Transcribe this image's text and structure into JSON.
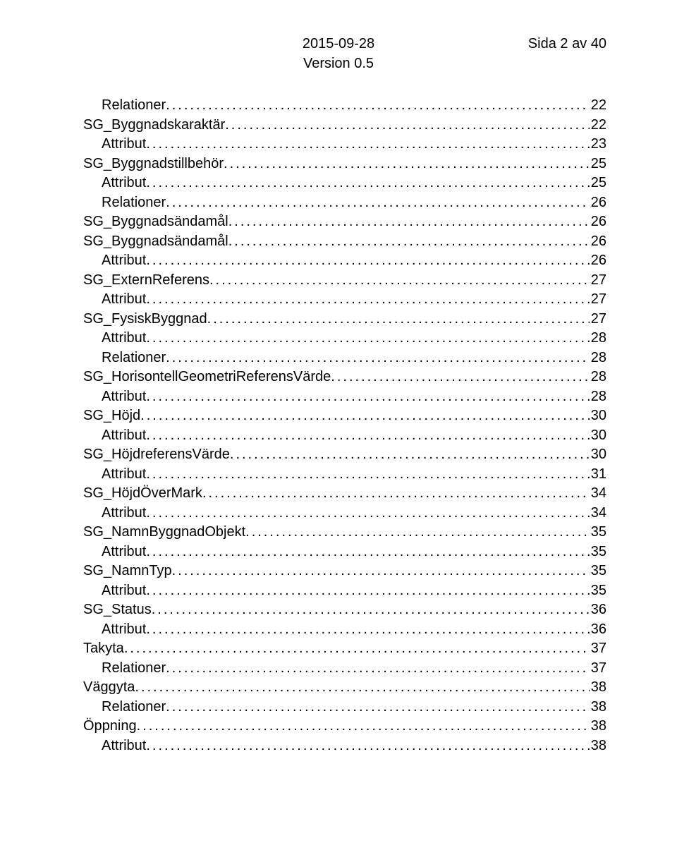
{
  "header": {
    "date": "2015-09-28",
    "version": "Version 0.5",
    "page_label": "Sida 2 av 40"
  },
  "toc": {
    "items": [
      {
        "label": "Relationer",
        "page": "22",
        "level": 1
      },
      {
        "label": "SG_Byggnadskaraktär",
        "page": "22",
        "level": 0
      },
      {
        "label": "Attribut",
        "page": "23",
        "level": 1
      },
      {
        "label": "SG_Byggnadstillbehör",
        "page": "25",
        "level": 0
      },
      {
        "label": "Attribut",
        "page": "25",
        "level": 1
      },
      {
        "label": "Relationer",
        "page": "26",
        "level": 1
      },
      {
        "label": "SG_Byggnadsändamål",
        "page": "26",
        "level": 0
      },
      {
        "label": "SG_Byggnadsändamål",
        "page": "26",
        "level": 0
      },
      {
        "label": "Attribut",
        "page": "26",
        "level": 1
      },
      {
        "label": "SG_ExternReferens",
        "page": "27",
        "level": 0
      },
      {
        "label": "Attribut",
        "page": "27",
        "level": 1
      },
      {
        "label": "SG_FysiskByggnad",
        "page": "27",
        "level": 0
      },
      {
        "label": "Attribut",
        "page": "28",
        "level": 1
      },
      {
        "label": "Relationer",
        "page": "28",
        "level": 1
      },
      {
        "label": "SG_HorisontellGeometriReferensVärde",
        "page": "28",
        "level": 0
      },
      {
        "label": "Attribut",
        "page": "28",
        "level": 1
      },
      {
        "label": "SG_Höjd",
        "page": "30",
        "level": 0
      },
      {
        "label": "Attribut",
        "page": "30",
        "level": 1
      },
      {
        "label": "SG_HöjdreferensVärde",
        "page": "30",
        "level": 0
      },
      {
        "label": "Attribut",
        "page": "31",
        "level": 1
      },
      {
        "label": "SG_HöjdÖverMark",
        "page": "34",
        "level": 0
      },
      {
        "label": "Attribut",
        "page": "34",
        "level": 1
      },
      {
        "label": "SG_NamnByggnadObjekt",
        "page": "35",
        "level": 0
      },
      {
        "label": "Attribut",
        "page": "35",
        "level": 1
      },
      {
        "label": "SG_NamnTyp",
        "page": "35",
        "level": 0
      },
      {
        "label": "Attribut",
        "page": "35",
        "level": 1
      },
      {
        "label": "SG_Status",
        "page": "36",
        "level": 0
      },
      {
        "label": "Attribut",
        "page": "36",
        "level": 1
      },
      {
        "label": "Takyta",
        "page": "37",
        "level": 0
      },
      {
        "label": "Relationer",
        "page": "37",
        "level": 1
      },
      {
        "label": "Väggyta",
        "page": "38",
        "level": 0
      },
      {
        "label": "Relationer",
        "page": "38",
        "level": 1
      },
      {
        "label": "Öppning",
        "page": "38",
        "level": 0
      },
      {
        "label": "Attribut",
        "page": "38",
        "level": 1
      }
    ]
  }
}
